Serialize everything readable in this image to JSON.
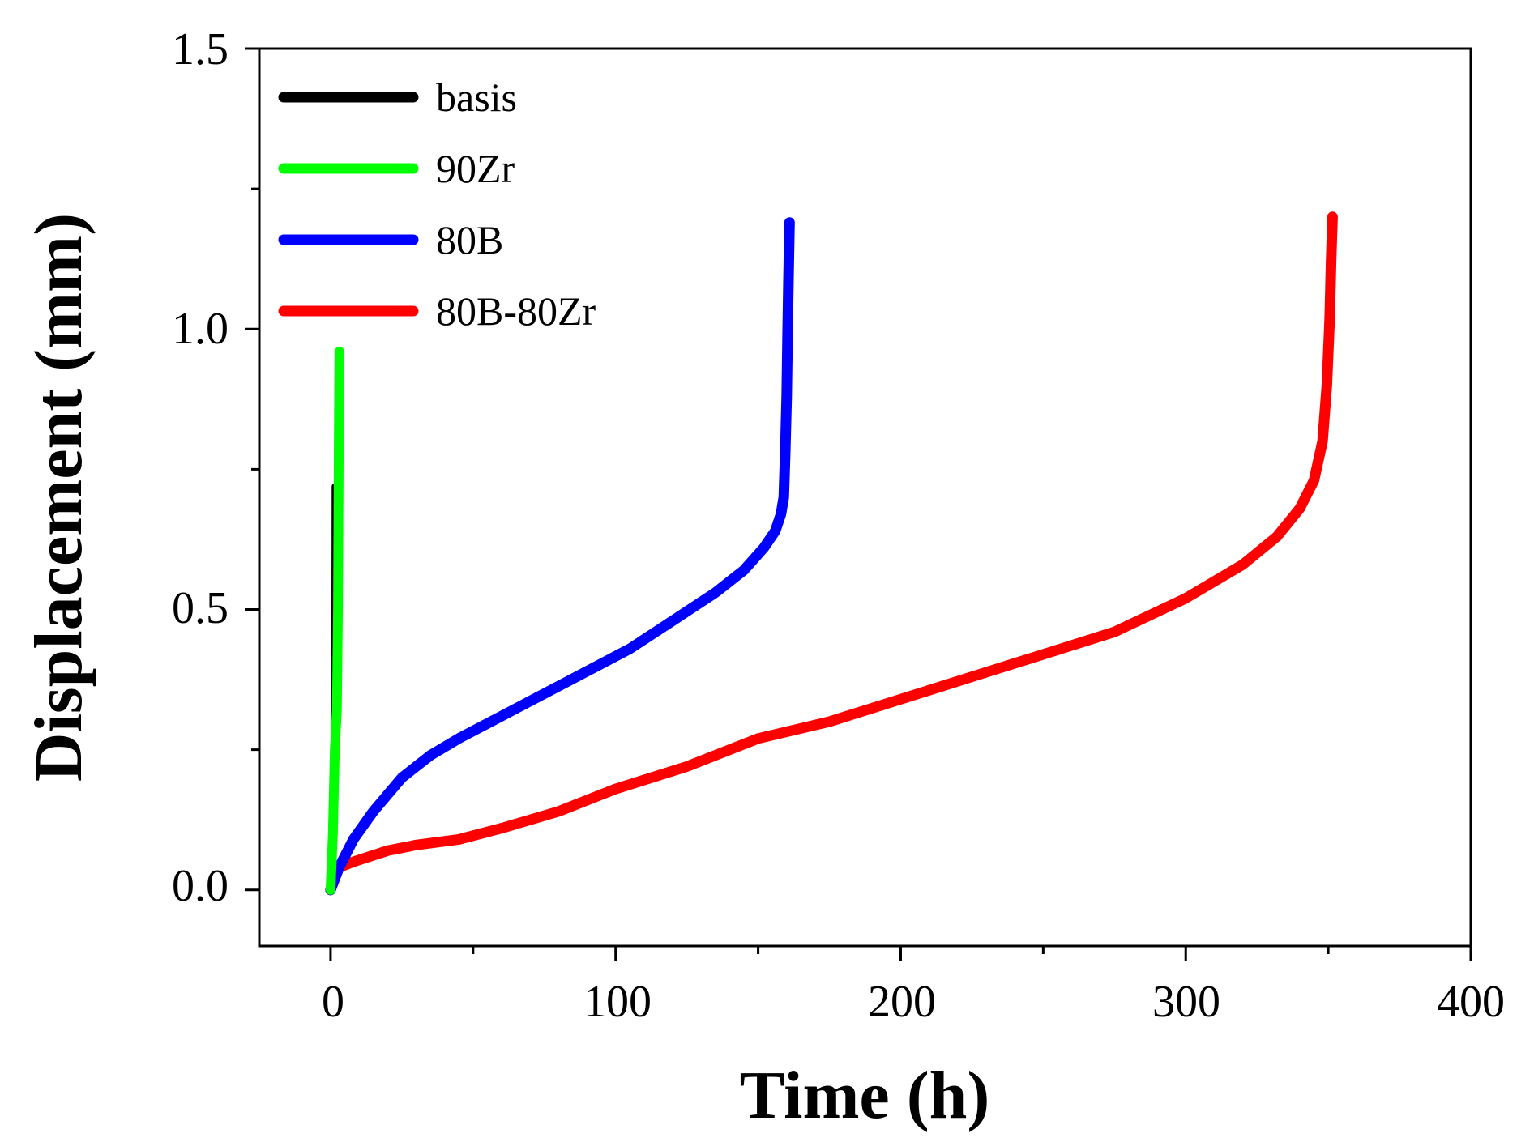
{
  "chart_data": {
    "type": "line",
    "title": "",
    "xlabel": "Time (h)",
    "ylabel": "Displacement (mm)",
    "xlim": [
      -25,
      400
    ],
    "ylim": [
      -0.1,
      1.5
    ],
    "xticks": [
      0,
      100,
      200,
      300,
      400
    ],
    "xtick_labels": [
      "0",
      "100",
      "200",
      "300",
      "400"
    ],
    "yticks": [
      0.0,
      0.5,
      1.0,
      1.5
    ],
    "ytick_labels": [
      "0.0",
      "0.5",
      "1.0",
      "1.5"
    ],
    "legend_position": "top-left",
    "grid": false,
    "series": [
      {
        "name": "basis",
        "color": "#000000",
        "x": [
          0,
          0.3,
          0.6,
          0.9,
          1.0,
          1.1
        ],
        "y": [
          0,
          0.05,
          0.15,
          0.3,
          0.5,
          0.72
        ]
      },
      {
        "name": "90Zr",
        "color": "#00ff00",
        "x": [
          0,
          0.8,
          1.5,
          2.2,
          2.6,
          2.9,
          3.1
        ],
        "y": [
          0,
          0.1,
          0.25,
          0.32,
          0.5,
          0.8,
          0.96
        ]
      },
      {
        "name": "80B",
        "color": "#0000ff",
        "x": [
          0,
          3,
          8,
          15,
          25,
          35,
          45,
          60,
          75,
          90,
          105,
          120,
          135,
          145,
          152,
          156,
          158,
          159,
          159.5,
          160,
          160.3,
          160.6,
          161
        ],
        "y": [
          0,
          0.04,
          0.09,
          0.14,
          0.2,
          0.24,
          0.27,
          0.31,
          0.35,
          0.39,
          0.43,
          0.48,
          0.53,
          0.57,
          0.61,
          0.64,
          0.67,
          0.7,
          0.78,
          0.88,
          0.98,
          1.08,
          1.19
        ]
      },
      {
        "name": "80B-80Zr",
        "color": "#ff0000",
        "x": [
          0,
          1,
          3,
          8,
          20,
          30,
          45,
          60,
          80,
          100,
          125,
          150,
          175,
          200,
          225,
          250,
          275,
          300,
          320,
          332,
          340,
          345,
          348,
          349.5,
          350.5,
          351,
          351.5
        ],
        "y": [
          0,
          0.02,
          0.04,
          0.05,
          0.07,
          0.08,
          0.09,
          0.11,
          0.14,
          0.18,
          0.22,
          0.27,
          0.3,
          0.34,
          0.38,
          0.42,
          0.46,
          0.52,
          0.58,
          0.63,
          0.68,
          0.73,
          0.8,
          0.9,
          1.02,
          1.12,
          1.2
        ]
      }
    ]
  }
}
